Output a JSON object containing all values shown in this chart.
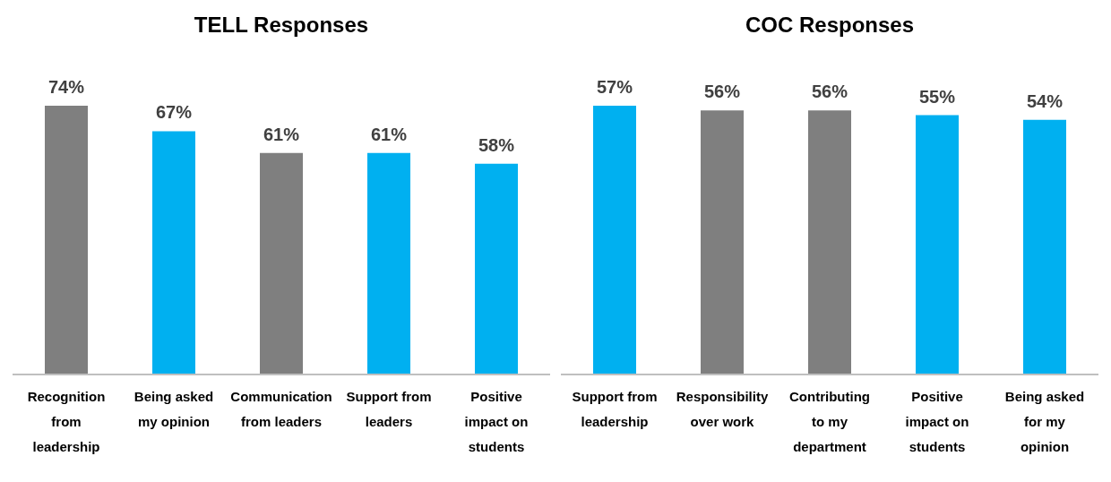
{
  "chart_data": [
    {
      "type": "bar",
      "title": "TELL Responses",
      "categories": [
        "Recognition from leadership",
        "Being asked my opinion",
        "Communication from leaders",
        "Support from leaders",
        "Positive impact on students"
      ],
      "values": [
        74,
        67,
        61,
        61,
        58
      ],
      "colors": [
        "#7f7f7f",
        "#00b0f0",
        "#7f7f7f",
        "#00b0f0",
        "#00b0f0"
      ],
      "value_labels": [
        "74%",
        "67%",
        "61%",
        "61%",
        "58%"
      ]
    },
    {
      "type": "bar",
      "title": "COC Responses",
      "categories": [
        "Support from leadership",
        "Responsibility over work",
        "Contributing to my department",
        "Positive impact on students",
        "Being asked for my opinion"
      ],
      "values": [
        57,
        56,
        56,
        55,
        54
      ],
      "colors": [
        "#00b0f0",
        "#7f7f7f",
        "#7f7f7f",
        "#00b0f0",
        "#00b0f0"
      ],
      "value_labels": [
        "57%",
        "56%",
        "56%",
        "55%",
        "54%"
      ]
    }
  ]
}
